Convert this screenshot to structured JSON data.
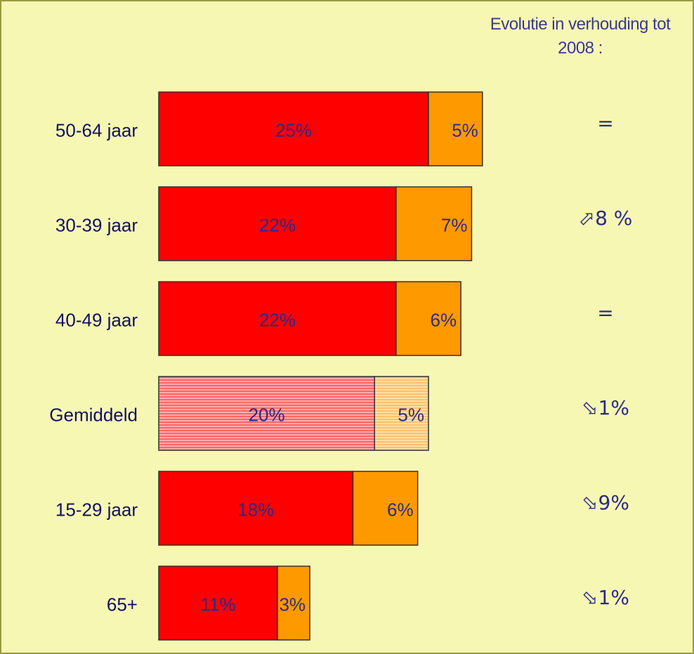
{
  "chart_data": {
    "type": "stacked_barh",
    "categories": [
      "50-64 jaar",
      "30-39 jaar",
      "40-49 jaar",
      "Gemiddeld",
      "15-29 jaar",
      "65+"
    ],
    "series": [
      {
        "color": "#ff0000",
        "values": [
          25,
          22,
          22,
          20,
          18,
          11
        ],
        "value_labels": [
          "25%",
          "22%",
          "22%",
          "20%",
          "18%",
          "11%"
        ]
      },
      {
        "color": "#ff9900",
        "values": [
          5,
          7,
          6,
          5,
          6,
          3
        ],
        "value_labels": [
          "5%",
          "7%",
          "6%",
          "5%",
          "6%",
          "3%"
        ]
      }
    ],
    "highlight": "Gemiddeld",
    "annotation_title": "Evolutie in verhouding tot 2008 :",
    "annotations": [
      "=",
      "⬀8 %",
      "=",
      "⬂1%",
      "⬂9%",
      "⬂1%"
    ]
  }
}
